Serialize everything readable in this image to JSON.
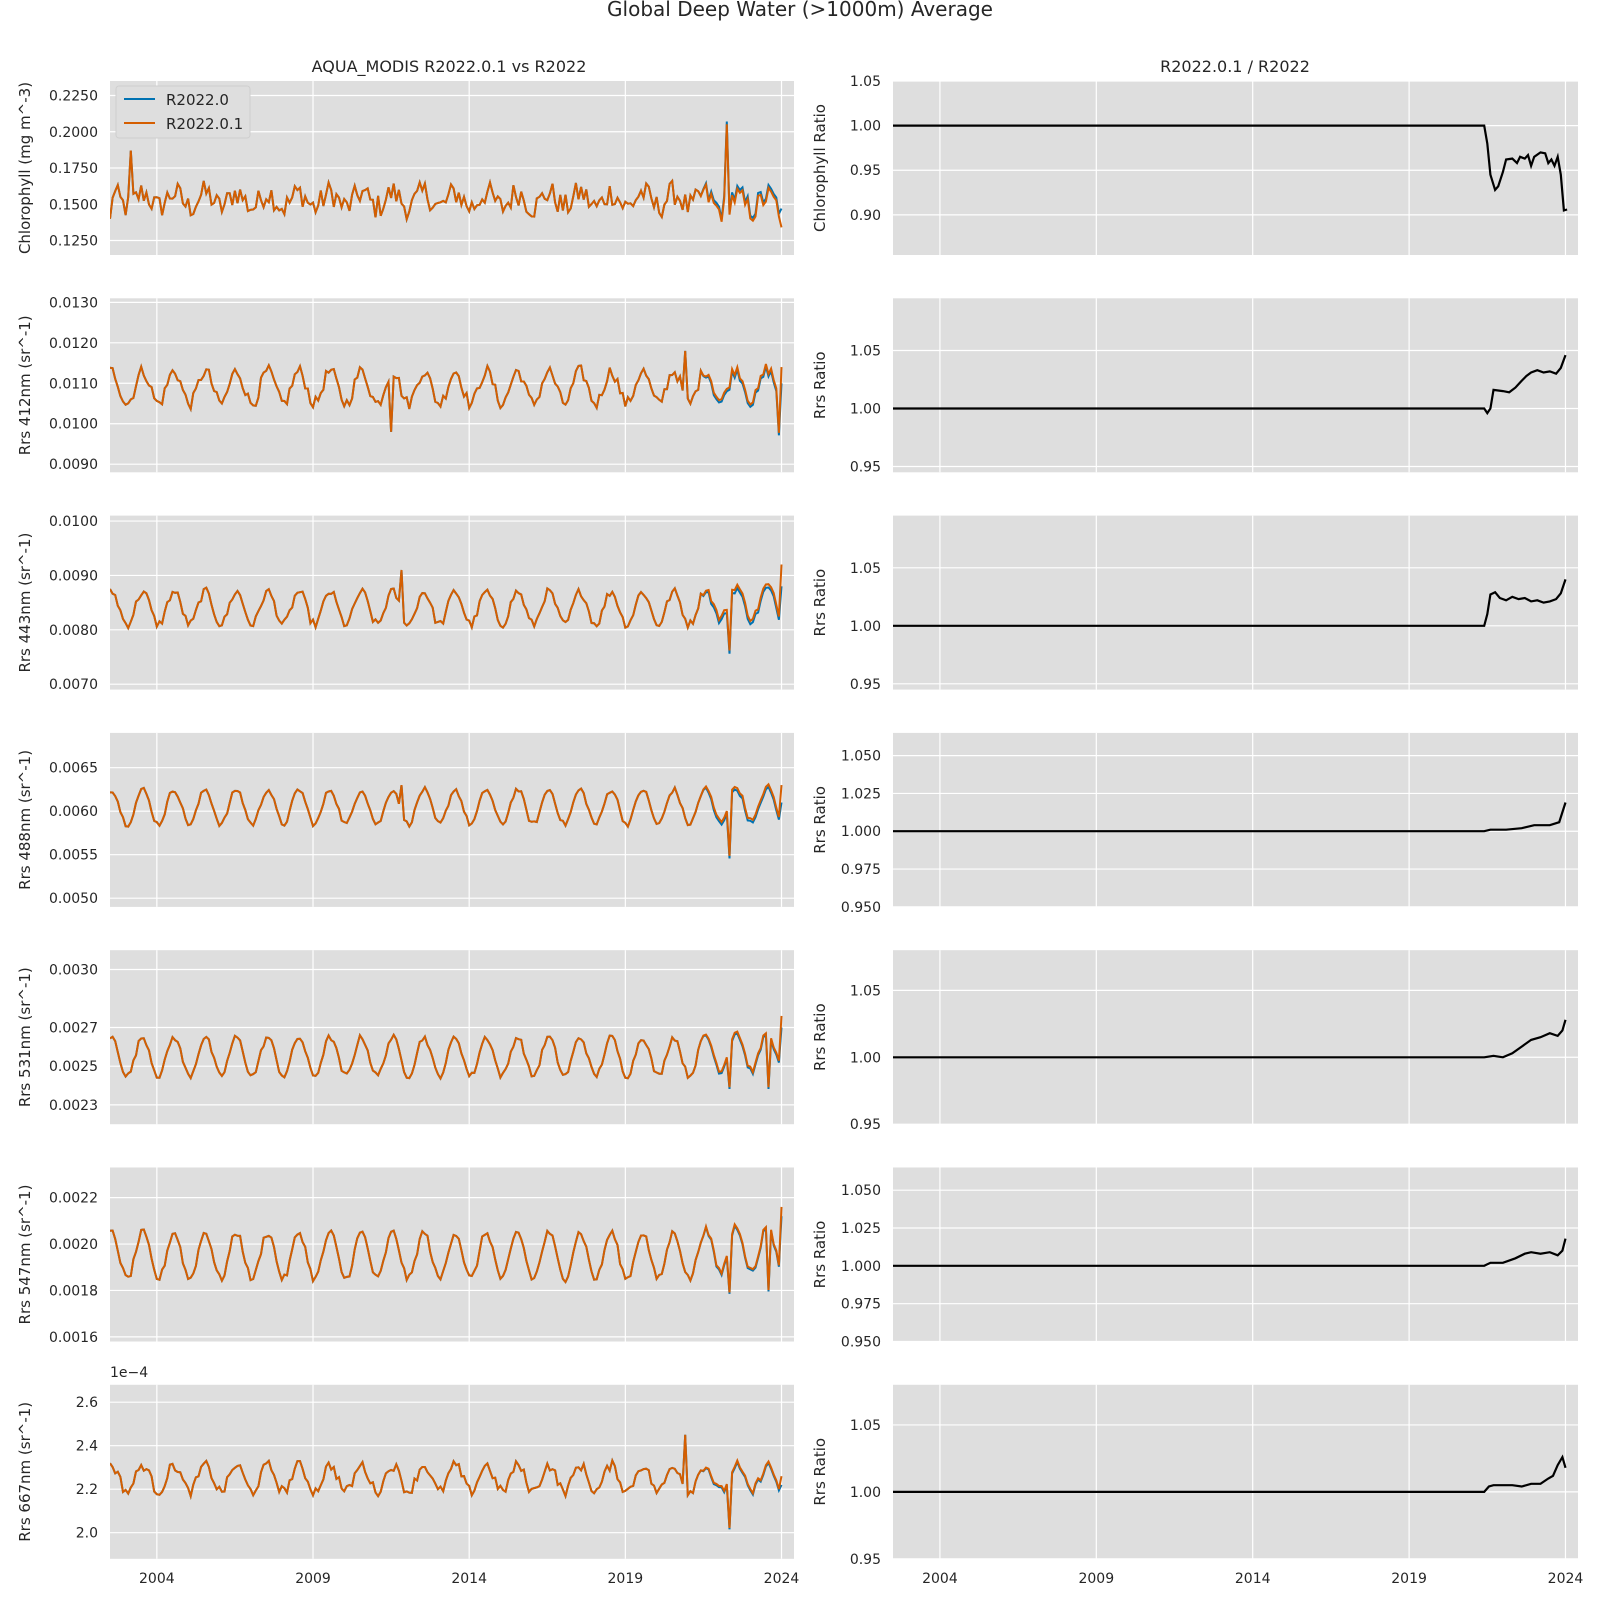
{
  "suptitle": "Global Deep Water (>1000m) Average",
  "left_title": "AQUA_MODIS R2022.0.1 vs R2022",
  "right_title": "R2022.0.1 / R2022",
  "legend": [
    "R2022.0",
    "R2022.0.1"
  ],
  "colors": {
    "r20220": "#0072b2",
    "r202201": "#d55e00",
    "ratio": "#000000",
    "panel_bg": "#dedede",
    "grid": "#ffffff"
  },
  "chart_data": [
    {
      "type": "line",
      "panel": "chlorophyll",
      "ylabel": "Chlorophyll (mg m^-3)",
      "ylim": [
        0.115,
        0.235
      ],
      "yticks": [
        "0.1250",
        "0.1500",
        "0.1750",
        "0.2000",
        "0.2250"
      ],
      "xlim": [
        2002.5,
        2024.4
      ],
      "xticks": [
        "2004",
        "2009",
        "2014",
        "2019",
        "2024"
      ],
      "series": [
        {
          "name": "R2022.0",
          "mean": 0.153,
          "amp": 0.005,
          "noise": 0.011,
          "start": [
            2002.5,
            0.14
          ],
          "end": [
            2024.0,
            0.147
          ]
        },
        {
          "name": "R2022.0.1",
          "mean": 0.153,
          "amp": 0.005,
          "noise": 0.011,
          "start": [
            2002.5,
            0.14
          ],
          "end": [
            2024.0,
            0.134
          ]
        }
      ],
      "divergence_start": 2021.4,
      "extremes": [
        [
          2022.25,
          0.214
        ],
        [
          2022.25,
          0.208
        ],
        [
          2003.2,
          0.187
        ]
      ]
    },
    {
      "type": "line",
      "panel": "rrs412",
      "ylabel": "Rrs 412nm (sr^-1)",
      "ylim": [
        0.0088,
        0.0131
      ],
      "yticks": [
        "0.0090",
        "0.0100",
        "0.0110",
        "0.0120",
        "0.0130"
      ],
      "xlim": [
        2002.5,
        2024.4
      ],
      "xticks": [
        "2004",
        "2009",
        "2014",
        "2019",
        "2024"
      ],
      "series": [
        {
          "name": "R2022.0",
          "mean": 0.0109,
          "amp": 0.0004,
          "noise": 0.0002,
          "end": [
            2024.0,
            0.011
          ]
        },
        {
          "name": "R2022.0.1",
          "mean": 0.0109,
          "amp": 0.0004,
          "noise": 0.0002,
          "end": [
            2024.0,
            0.0114
          ]
        }
      ],
      "divergence_start": 2021.4,
      "extremes": [
        [
          2023.9,
          0.0097
        ],
        [
          2011.5,
          0.0098
        ],
        [
          2020.9,
          0.0118
        ]
      ]
    },
    {
      "type": "line",
      "panel": "rrs443",
      "ylabel": "Rrs 443nm (sr^-1)",
      "ylim": [
        0.0069,
        0.0101
      ],
      "yticks": [
        "0.0070",
        "0.0080",
        "0.0090",
        "0.0100"
      ],
      "xlim": [
        2002.5,
        2024.4
      ],
      "xticks": [
        "2004",
        "2009",
        "2014",
        "2019",
        "2024"
      ],
      "series": [
        {
          "name": "R2022.0",
          "mean": 0.0084,
          "amp": 0.0003,
          "noise": 0.0001,
          "end": [
            2024.0,
            0.0088
          ]
        },
        {
          "name": "R2022.0.1",
          "mean": 0.0084,
          "amp": 0.0003,
          "noise": 0.0001,
          "end": [
            2024.0,
            0.0092
          ]
        }
      ],
      "divergence_start": 2021.4,
      "extremes": [
        [
          2022.3,
          0.0075
        ],
        [
          2011.8,
          0.0091
        ]
      ]
    },
    {
      "type": "line",
      "panel": "rrs488",
      "ylabel": "Rrs 488nm (sr^-1)",
      "ylim": [
        0.0049,
        0.0069
      ],
      "yticks": [
        "0.0050",
        "0.0055",
        "0.0060",
        "0.0065"
      ],
      "xlim": [
        2002.5,
        2024.4
      ],
      "xticks": [
        "2004",
        "2009",
        "2014",
        "2019",
        "2024"
      ],
      "series": [
        {
          "name": "R2022.0",
          "mean": 0.00605,
          "amp": 0.0002,
          "noise": 4e-05,
          "end": [
            2024.0,
            0.0061
          ]
        },
        {
          "name": "R2022.0.1",
          "mean": 0.00605,
          "amp": 0.0002,
          "noise": 4e-05,
          "end": [
            2024.0,
            0.0063
          ]
        }
      ],
      "divergence_start": 2021.4,
      "extremes": [
        [
          2022.3,
          0.00545
        ],
        [
          2011.8,
          0.0063
        ]
      ]
    },
    {
      "type": "line",
      "panel": "rrs531",
      "ylabel": "Rrs 531nm (sr^-1)",
      "ylim": [
        0.0022,
        0.0031
      ],
      "yticks": [
        "0.0023",
        "0.0025",
        "0.0027",
        "0.0030"
      ],
      "xlim": [
        2002.5,
        2024.4
      ],
      "xticks": [
        "2004",
        "2009",
        "2014",
        "2019",
        "2024"
      ],
      "series": [
        {
          "name": "R2022.0",
          "mean": 0.00255,
          "amp": 0.0001,
          "noise": 2e-05,
          "end": [
            2024.0,
            0.0027
          ]
        },
        {
          "name": "R2022.0.1",
          "mean": 0.00255,
          "amp": 0.0001,
          "noise": 2e-05,
          "end": [
            2024.0,
            0.00276
          ]
        }
      ],
      "divergence_start": 2021.4,
      "extremes": [
        [
          2022.3,
          0.00236
        ],
        [
          2023.6,
          0.00236
        ]
      ]
    },
    {
      "type": "line",
      "panel": "rrs547",
      "ylabel": "Rrs 547nm (sr^-1)",
      "ylim": [
        0.00158,
        0.00233
      ],
      "yticks": [
        "0.0016",
        "0.0018",
        "0.0020",
        "0.0022"
      ],
      "xlim": [
        2002.5,
        2024.4
      ],
      "xticks": [
        "2004",
        "2009",
        "2014",
        "2019",
        "2024"
      ],
      "series": [
        {
          "name": "R2022.0",
          "mean": 0.00195,
          "amp": 0.0001,
          "noise": 2e-05,
          "end": [
            2024.0,
            0.00212
          ]
        },
        {
          "name": "R2022.0.1",
          "mean": 0.00195,
          "amp": 0.0001,
          "noise": 2e-05,
          "end": [
            2024.0,
            0.00216
          ]
        }
      ],
      "divergence_start": 2021.4,
      "extremes": [
        [
          2022.3,
          0.00176
        ],
        [
          2023.6,
          0.00177
        ]
      ]
    },
    {
      "type": "line",
      "panel": "rrs667",
      "ylabel": "Rrs 667nm (sr^-1)",
      "offset_label": "1e−4",
      "ylim": [
        1.88,
        2.68
      ],
      "yticks": [
        "2.0",
        "2.2",
        "2.4",
        "2.6"
      ],
      "xlim": [
        2002.5,
        2024.4
      ],
      "xticks": [
        "2004",
        "2009",
        "2014",
        "2019",
        "2024"
      ],
      "series": [
        {
          "name": "R2022.0",
          "mean": 2.25,
          "amp": 0.06,
          "noise": 0.03,
          "end": [
            2024.0,
            2.22
          ]
        },
        {
          "name": "R2022.0.1",
          "mean": 2.25,
          "amp": 0.06,
          "noise": 0.03,
          "end": [
            2024.0,
            2.26
          ]
        }
      ],
      "divergence_start": 2021.4,
      "extremes": [
        [
          2022.3,
          2.02
        ],
        [
          2020.9,
          2.45
        ]
      ]
    },
    {
      "type": "line",
      "panel": "ratio-chl",
      "ylabel": "Chlorophyll Ratio",
      "ylim": [
        0.855,
        1.05
      ],
      "yticks": [
        "0.90",
        "0.95",
        "1.00",
        "1.05"
      ],
      "xlim": [
        2002.5,
        2024.4
      ],
      "xticks": [
        "2004",
        "2009",
        "2014",
        "2019",
        "2024"
      ],
      "points": [
        [
          2002.5,
          1.0
        ],
        [
          2021.4,
          1.0
        ],
        [
          2021.5,
          0.98
        ],
        [
          2021.6,
          0.945
        ],
        [
          2021.75,
          0.928
        ],
        [
          2021.85,
          0.932
        ],
        [
          2022.0,
          0.948
        ],
        [
          2022.1,
          0.962
        ],
        [
          2022.3,
          0.963
        ],
        [
          2022.45,
          0.958
        ],
        [
          2022.55,
          0.965
        ],
        [
          2022.7,
          0.963
        ],
        [
          2022.8,
          0.967
        ],
        [
          2022.9,
          0.955
        ],
        [
          2023.0,
          0.965
        ],
        [
          2023.2,
          0.97
        ],
        [
          2023.35,
          0.969
        ],
        [
          2023.45,
          0.958
        ],
        [
          2023.55,
          0.962
        ],
        [
          2023.65,
          0.955
        ],
        [
          2023.75,
          0.965
        ],
        [
          2023.85,
          0.945
        ],
        [
          2023.95,
          0.905
        ],
        [
          2024.05,
          0.906
        ]
      ]
    },
    {
      "type": "line",
      "panel": "ratio-412",
      "ylabel": "Rrs Ratio",
      "ylim": [
        0.945,
        1.095
      ],
      "yticks": [
        "0.95",
        "1.00",
        "1.05"
      ],
      "xlim": [
        2002.5,
        2024.4
      ],
      "xticks": [
        "2004",
        "2009",
        "2014",
        "2019",
        "2024"
      ],
      "points": [
        [
          2002.5,
          1.0
        ],
        [
          2021.4,
          1.0
        ],
        [
          2021.5,
          0.996
        ],
        [
          2021.6,
          1.0
        ],
        [
          2021.7,
          1.016
        ],
        [
          2022.0,
          1.015
        ],
        [
          2022.2,
          1.014
        ],
        [
          2022.4,
          1.018
        ],
        [
          2022.6,
          1.024
        ],
        [
          2022.75,
          1.028
        ],
        [
          2022.9,
          1.031
        ],
        [
          2023.1,
          1.033
        ],
        [
          2023.3,
          1.031
        ],
        [
          2023.5,
          1.032
        ],
        [
          2023.7,
          1.03
        ],
        [
          2023.85,
          1.035
        ],
        [
          2024.0,
          1.046
        ]
      ]
    },
    {
      "type": "line",
      "panel": "ratio-443",
      "ylabel": "Rrs Ratio",
      "ylim": [
        0.945,
        1.095
      ],
      "yticks": [
        "0.95",
        "1.00",
        "1.05"
      ],
      "xlim": [
        2002.5,
        2024.4
      ],
      "xticks": [
        "2004",
        "2009",
        "2014",
        "2019",
        "2024"
      ],
      "points": [
        [
          2002.5,
          1.0
        ],
        [
          2021.4,
          1.0
        ],
        [
          2021.5,
          1.01
        ],
        [
          2021.6,
          1.027
        ],
        [
          2021.75,
          1.029
        ],
        [
          2021.9,
          1.024
        ],
        [
          2022.1,
          1.022
        ],
        [
          2022.3,
          1.025
        ],
        [
          2022.5,
          1.023
        ],
        [
          2022.7,
          1.024
        ],
        [
          2022.9,
          1.021
        ],
        [
          2023.1,
          1.022
        ],
        [
          2023.3,
          1.02
        ],
        [
          2023.5,
          1.021
        ],
        [
          2023.7,
          1.023
        ],
        [
          2023.85,
          1.028
        ],
        [
          2024.0,
          1.04
        ]
      ]
    },
    {
      "type": "line",
      "panel": "ratio-488",
      "ylabel": "Rrs Ratio",
      "ylim": [
        0.95,
        1.065
      ],
      "yticks": [
        "0.950",
        "0.975",
        "1.000",
        "1.025",
        "1.050"
      ],
      "xlim": [
        2002.5,
        2024.4
      ],
      "xticks": [
        "2004",
        "2009",
        "2014",
        "2019",
        "2024"
      ],
      "points": [
        [
          2002.5,
          1.0
        ],
        [
          2021.4,
          1.0
        ],
        [
          2021.6,
          1.001
        ],
        [
          2022.1,
          1.001
        ],
        [
          2022.6,
          1.002
        ],
        [
          2023.0,
          1.004
        ],
        [
          2023.5,
          1.004
        ],
        [
          2023.8,
          1.006
        ],
        [
          2024.0,
          1.019
        ]
      ]
    },
    {
      "type": "line",
      "panel": "ratio-531",
      "ylabel": "Rrs Ratio",
      "ylim": [
        0.95,
        1.08
      ],
      "yticks": [
        "0.95",
        "1.00",
        "1.05"
      ],
      "xlim": [
        2002.5,
        2024.4
      ],
      "xticks": [
        "2004",
        "2009",
        "2014",
        "2019",
        "2024"
      ],
      "points": [
        [
          2002.5,
          1.0
        ],
        [
          2021.4,
          1.0
        ],
        [
          2021.7,
          1.001
        ],
        [
          2022.0,
          1.0
        ],
        [
          2022.3,
          1.003
        ],
        [
          2022.6,
          1.008
        ],
        [
          2022.9,
          1.013
        ],
        [
          2023.2,
          1.015
        ],
        [
          2023.5,
          1.018
        ],
        [
          2023.75,
          1.016
        ],
        [
          2023.9,
          1.02
        ],
        [
          2024.0,
          1.028
        ]
      ]
    },
    {
      "type": "line",
      "panel": "ratio-547",
      "ylabel": "Rrs Ratio",
      "ylim": [
        0.95,
        1.065
      ],
      "yticks": [
        "0.950",
        "0.975",
        "1.000",
        "1.025",
        "1.050"
      ],
      "xlim": [
        2002.5,
        2024.4
      ],
      "xticks": [
        "2004",
        "2009",
        "2014",
        "2019",
        "2024"
      ],
      "points": [
        [
          2002.5,
          1.0
        ],
        [
          2021.4,
          1.0
        ],
        [
          2021.6,
          1.002
        ],
        [
          2022.0,
          1.002
        ],
        [
          2022.4,
          1.005
        ],
        [
          2022.7,
          1.008
        ],
        [
          2022.9,
          1.009
        ],
        [
          2023.2,
          1.008
        ],
        [
          2023.5,
          1.009
        ],
        [
          2023.75,
          1.007
        ],
        [
          2023.9,
          1.01
        ],
        [
          2024.0,
          1.018
        ]
      ]
    },
    {
      "type": "line",
      "panel": "ratio-667",
      "ylabel": "Rrs Ratio",
      "ylim": [
        0.95,
        1.08
      ],
      "yticks": [
        "0.95",
        "1.00",
        "1.05"
      ],
      "xlim": [
        2002.5,
        2024.4
      ],
      "xticks": [
        "2004",
        "2009",
        "2014",
        "2019",
        "2024"
      ],
      "points": [
        [
          2002.5,
          1.0
        ],
        [
          2021.4,
          1.0
        ],
        [
          2021.55,
          1.004
        ],
        [
          2021.7,
          1.005
        ],
        [
          2022.0,
          1.005
        ],
        [
          2022.3,
          1.005
        ],
        [
          2022.6,
          1.004
        ],
        [
          2022.9,
          1.006
        ],
        [
          2023.2,
          1.006
        ],
        [
          2023.45,
          1.01
        ],
        [
          2023.6,
          1.012
        ],
        [
          2023.75,
          1.02
        ],
        [
          2023.9,
          1.026
        ],
        [
          2024.0,
          1.018
        ]
      ]
    }
  ]
}
